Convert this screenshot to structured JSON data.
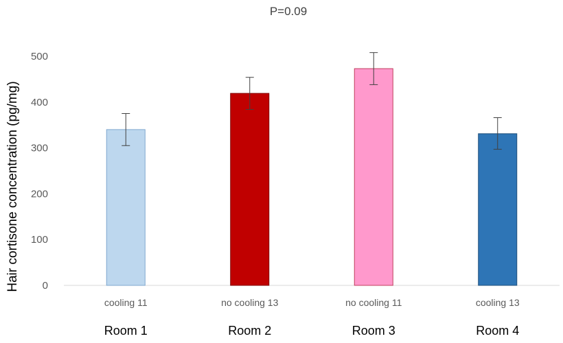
{
  "chart_data": {
    "type": "bar",
    "title": "P=0.09",
    "ylabel": "Hair cortisone concentration (pg/mg)",
    "xlabel": "",
    "ylim": [
      0,
      500
    ],
    "yticks": [
      "0",
      "100",
      "200",
      "300",
      "400",
      "500"
    ],
    "grid": false,
    "categories": [
      "cooling 11",
      "no cooling 13",
      "no cooling 11",
      "cooling 13"
    ],
    "groups": [
      "Room 1",
      "Room 2",
      "Room 3",
      "Room 4"
    ],
    "values": [
      340,
      419,
      473,
      331
    ],
    "error_low": [
      305,
      384,
      438,
      297
    ],
    "error_high": [
      375,
      454,
      508,
      366
    ],
    "colors": [
      "#bdd7ee",
      "#c00000",
      "#ff99cc",
      "#2e75b6"
    ],
    "edge_colors": [
      "#7fa7cf",
      "#7f0000",
      "#c0405f",
      "#1f4e79"
    ]
  }
}
